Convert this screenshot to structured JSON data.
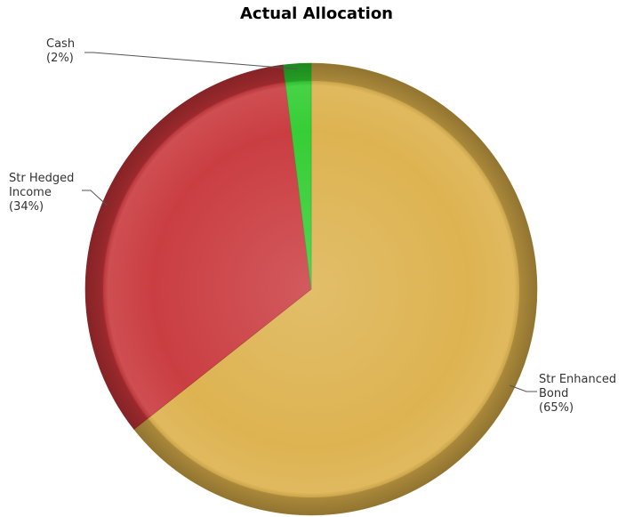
{
  "chart_data": {
    "type": "pie",
    "title": "Actual Allocation",
    "slices": [
      {
        "label_lines": [
          "Str Enhanced",
          "Bond"
        ],
        "label_pct": "(65%)",
        "value": 65,
        "color": "#dcb04a"
      },
      {
        "label_lines": [
          "Str Hedged",
          "Income"
        ],
        "label_pct": "(34%)",
        "value": 34,
        "color": "#c8363a"
      },
      {
        "label_lines": [
          "Cash"
        ],
        "label_pct": "(2%)",
        "value": 2,
        "color": "#2ecc2e"
      }
    ],
    "start_angle_deg": 0,
    "direction": "clockwise",
    "labels_outside": true,
    "legend": "none"
  }
}
